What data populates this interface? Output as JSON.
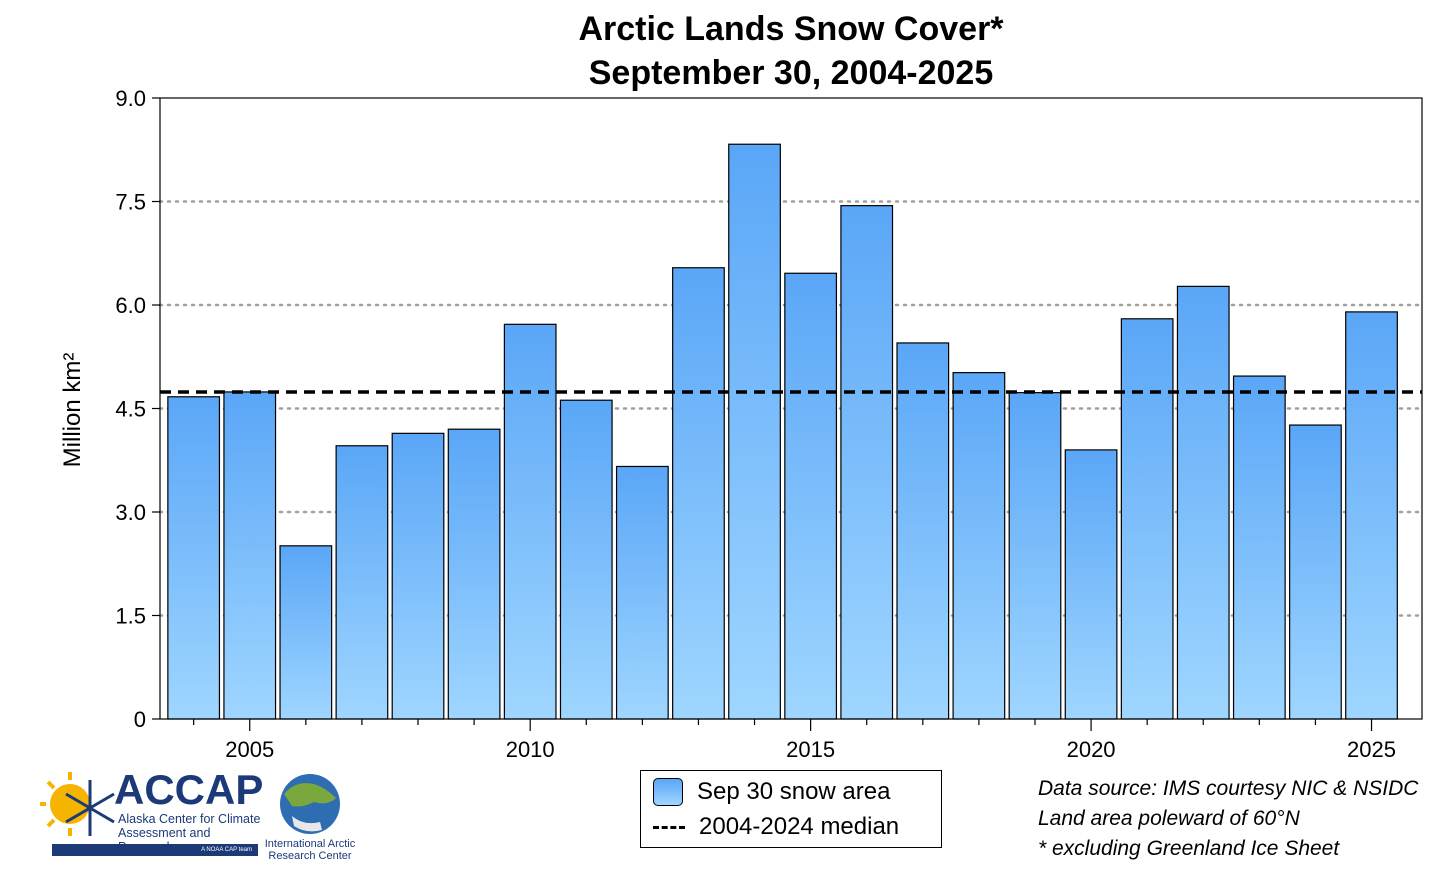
{
  "chart_data": {
    "type": "bar",
    "title": "Arctic Lands Snow Cover*",
    "subtitle": "September 30, 2004-2025",
    "xlabel": "",
    "ylabel": "Million km²",
    "categories": [
      2004,
      2005,
      2006,
      2007,
      2008,
      2009,
      2010,
      2011,
      2012,
      2013,
      2014,
      2015,
      2016,
      2017,
      2018,
      2019,
      2020,
      2021,
      2022,
      2023,
      2024,
      2025
    ],
    "values": [
      4.67,
      4.74,
      2.51,
      3.96,
      4.14,
      4.2,
      5.72,
      4.62,
      3.66,
      6.54,
      8.33,
      6.46,
      7.44,
      5.45,
      5.02,
      4.73,
      3.9,
      5.8,
      6.27,
      4.97,
      4.26,
      5.9
    ],
    "ylim": [
      0,
      9.0
    ],
    "yticks": [
      0,
      1.5,
      3.0,
      4.5,
      6.0,
      7.5,
      9.0
    ],
    "ytick_labels": [
      "0",
      "1.5",
      "3.0",
      "4.5",
      "6.0",
      "7.5",
      "9.0"
    ],
    "xlim": [
      2003.4,
      2025.9
    ],
    "xticks": [
      2005,
      2010,
      2015,
      2020,
      2025
    ],
    "xtick_labels": [
      "2005",
      "2010",
      "2015",
      "2020",
      "2025"
    ],
    "median": 4.74,
    "grid": "horizontal dotted",
    "legend": {
      "placement": "bottom-center",
      "bar_label": "Sep 30 snow area",
      "line_label": "2004-2024 median"
    },
    "colors": {
      "bar_top": "#5aa6f7",
      "bar_bottom": "#9fd6ff",
      "median_line": "#000000",
      "grid": "#a0a0a0"
    }
  },
  "notes": {
    "line1": "Data source: IMS courtesy NIC & NSIDC",
    "line2": "Land area poleward of 60°N",
    "line3": "* excluding Greenland Ice Sheet"
  },
  "logos": {
    "accap_name": "ACCAP",
    "accap_sub1": "Alaska Center for Climate",
    "accap_sub2": "Assessment and Preparedness",
    "accap_tag": "A NOAA CAP team",
    "iarc_line1": "International Arctic",
    "iarc_line2": "Research Center"
  }
}
